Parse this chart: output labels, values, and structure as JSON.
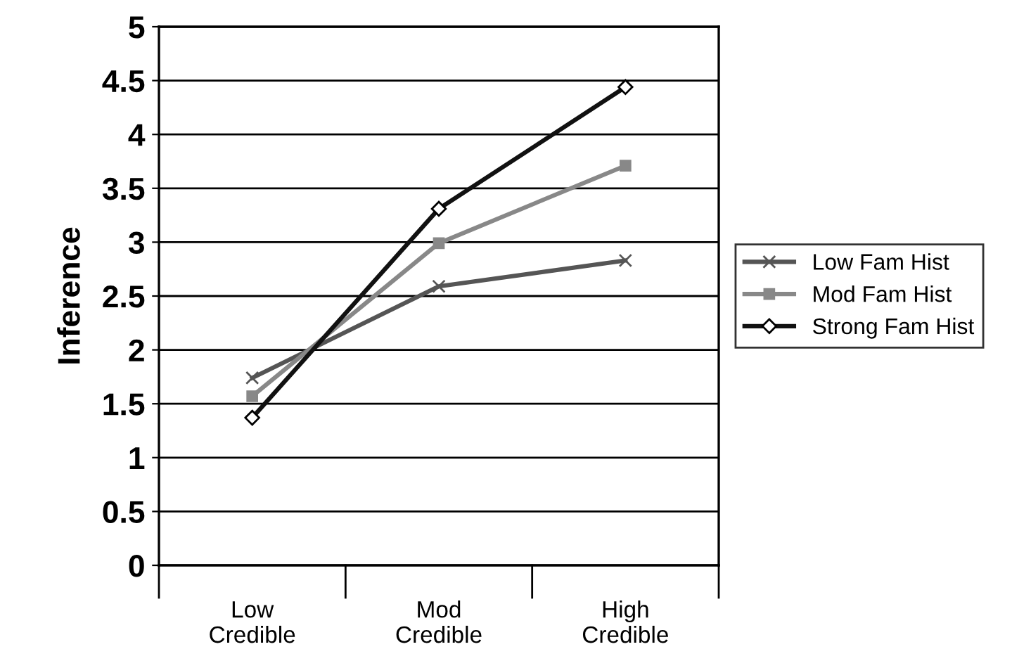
{
  "chart_data": {
    "type": "line",
    "ylabel": "Inference",
    "categories": [
      "Low\nCredible",
      "Mod\nCredible",
      "High\nCredible"
    ],
    "series": [
      {
        "name": "Low Fam Hist",
        "color": "#555555",
        "marker": "cross",
        "values": [
          1.74,
          2.59,
          2.83
        ]
      },
      {
        "name": "Mod Fam Hist",
        "color": "#888888",
        "marker": "square",
        "values": [
          1.57,
          2.99,
          3.71
        ]
      },
      {
        "name": "Strong Fam Hist",
        "color": "#111111",
        "marker": "diamond",
        "values": [
          1.37,
          3.31,
          4.44
        ]
      }
    ],
    "ylim": [
      0,
      5
    ],
    "yticks": [
      0,
      0.5,
      1,
      1.5,
      2,
      2.5,
      3,
      3.5,
      4,
      4.5,
      5
    ],
    "grid": "y",
    "legend": "right",
    "line_style": "solid"
  }
}
